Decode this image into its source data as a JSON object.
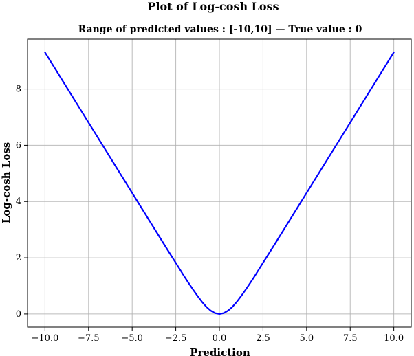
{
  "chart_data": {
    "type": "line",
    "title": "Plot of Log-cosh Loss",
    "subtitle": "Range of predicted values : [-10,10] — True value : 0",
    "xlabel": "Prediction",
    "ylabel": "Log-cosh Loss",
    "xlim": [
      -11,
      11
    ],
    "ylim": [
      -0.4667,
      9.7736
    ],
    "x_ticks": [
      -10,
      -7.5,
      -5,
      -2.5,
      0,
      2.5,
      5,
      7.5,
      10
    ],
    "x_tick_labels": [
      "−10.0",
      "−7.5",
      "−5.0",
      "−2.5",
      "0.0",
      "2.5",
      "5.0",
      "7.5",
      "10.0"
    ],
    "y_ticks": [
      0,
      2,
      4,
      6,
      8
    ],
    "y_tick_labels": [
      "0",
      "2",
      "4",
      "6",
      "8"
    ],
    "grid": true,
    "legend": "none",
    "series": [
      {
        "color": "#0000ff",
        "x": [
          -10,
          -9,
          -8,
          -7,
          -6,
          -5,
          -4.5,
          -4,
          -3.5,
          -3,
          -2.5,
          -2,
          -1.75,
          -1.5,
          -1.25,
          -1,
          -0.75,
          -0.5,
          -0.25,
          0,
          0.25,
          0.5,
          0.75,
          1,
          1.25,
          1.5,
          1.75,
          2,
          2.5,
          3,
          3.5,
          4,
          4.5,
          5,
          6,
          7,
          8,
          9,
          10
        ],
        "y": [
          9.307,
          8.307,
          7.307,
          6.307,
          5.307,
          4.307,
          3.807,
          3.307,
          2.808,
          2.31,
          1.82,
          1.325,
          1.089,
          0.86,
          0.64,
          0.434,
          0.257,
          0.12,
          0.031,
          0,
          0.031,
          0.12,
          0.257,
          0.434,
          0.64,
          0.86,
          1.089,
          1.325,
          1.82,
          2.31,
          2.808,
          3.307,
          3.807,
          4.307,
          5.307,
          6.307,
          7.307,
          8.307,
          9.307
        ]
      }
    ]
  }
}
